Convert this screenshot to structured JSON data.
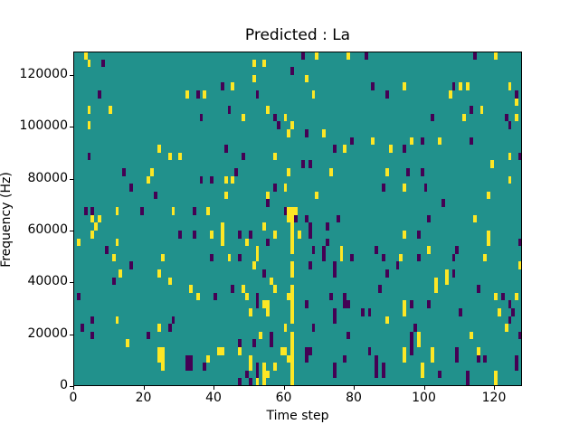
{
  "figure": {
    "title": "Predicted : La",
    "xlabel": "Time step",
    "ylabel": "Frequency (Hz)"
  },
  "chart_data": {
    "type": "heatmap",
    "title": "Predicted : La",
    "xlabel": "Time step",
    "ylabel": "Frequency (Hz)",
    "xlim": [
      0,
      128
    ],
    "ylim": [
      0,
      129000
    ],
    "grid": {
      "n_cols": 128,
      "n_rows": 43,
      "row0_at_top": true
    },
    "xticks": [
      0,
      20,
      40,
      60,
      80,
      100,
      120
    ],
    "xtick_labels": [
      "0",
      "20",
      "40",
      "60",
      "80",
      "100",
      "120"
    ],
    "yticks": [
      0,
      20000,
      40000,
      60000,
      80000,
      100000,
      120000
    ],
    "ytick_labels": [
      "0",
      "20000",
      "40000",
      "60000",
      "80000",
      "100000",
      "120000"
    ],
    "legend": null,
    "colors": {
      "background_mid": "#21918c",
      "max_yellow": "#fde725",
      "min_purple": "#440154",
      "spine": "#000000"
    },
    "value_legend": "points are [col, row_from_top, v] with v: 1 = max (yellow), 0 = min (purple); all other cells = mid (teal)",
    "points": [
      [
        3,
        0,
        1
      ],
      [
        4,
        1,
        1
      ],
      [
        8,
        1,
        0
      ],
      [
        51,
        1,
        1
      ],
      [
        54,
        1,
        1
      ],
      [
        62,
        2,
        0
      ],
      [
        51,
        3,
        1
      ],
      [
        42,
        4,
        0
      ],
      [
        45,
        4,
        1
      ],
      [
        7,
        5,
        0
      ],
      [
        32,
        5,
        1
      ],
      [
        35,
        5,
        0
      ],
      [
        37,
        5,
        1
      ],
      [
        52,
        5,
        0
      ],
      [
        4,
        7,
        1
      ],
      [
        10,
        7,
        1
      ],
      [
        44,
        7,
        0
      ],
      [
        55,
        7,
        1
      ],
      [
        36,
        8,
        0
      ],
      [
        48,
        8,
        1
      ],
      [
        60,
        8,
        1
      ],
      [
        57,
        8,
        0
      ],
      [
        58,
        9,
        0
      ],
      [
        4,
        9,
        1
      ],
      [
        62,
        9,
        1
      ],
      [
        61,
        10,
        1
      ],
      [
        24,
        12,
        1
      ],
      [
        43,
        12,
        0
      ],
      [
        4,
        13,
        0
      ],
      [
        27,
        13,
        1
      ],
      [
        30,
        13,
        1
      ],
      [
        48,
        13,
        0
      ],
      [
        57,
        13,
        1
      ],
      [
        14,
        15,
        0
      ],
      [
        22,
        15,
        1
      ],
      [
        46,
        15,
        0
      ],
      [
        61,
        15,
        1
      ],
      [
        21,
        16,
        1
      ],
      [
        36,
        16,
        0
      ],
      [
        39,
        16,
        0
      ],
      [
        43,
        16,
        1
      ],
      [
        45,
        16,
        1
      ],
      [
        16,
        17,
        0
      ],
      [
        60,
        17,
        1
      ],
      [
        57,
        17,
        0
      ],
      [
        43,
        18,
        1
      ],
      [
        23,
        18,
        0
      ],
      [
        55,
        18,
        1
      ],
      [
        55,
        19,
        0
      ],
      [
        3,
        20,
        0
      ],
      [
        5,
        20,
        0
      ],
      [
        12,
        20,
        1
      ],
      [
        28,
        20,
        1
      ],
      [
        34,
        20,
        0
      ],
      [
        38,
        20,
        1
      ],
      [
        19,
        20,
        0
      ],
      [
        5,
        21,
        1
      ],
      [
        7,
        21,
        1
      ],
      [
        63,
        21,
        0
      ],
      [
        65,
        0,
        0
      ],
      [
        69,
        0,
        1
      ],
      [
        78,
        0,
        1
      ],
      [
        83,
        0,
        0
      ],
      [
        114,
        0,
        0
      ],
      [
        120,
        0,
        1
      ],
      [
        66,
        3,
        1
      ],
      [
        85,
        4,
        0
      ],
      [
        94,
        4,
        1
      ],
      [
        108,
        4,
        0
      ],
      [
        110,
        4,
        1
      ],
      [
        112,
        4,
        1
      ],
      [
        124,
        4,
        1
      ],
      [
        126,
        5,
        0
      ],
      [
        68,
        5,
        1
      ],
      [
        89,
        5,
        0
      ],
      [
        107,
        5,
        1
      ],
      [
        113,
        7,
        0
      ],
      [
        116,
        7,
        1
      ],
      [
        126,
        6,
        1
      ],
      [
        102,
        8,
        0
      ],
      [
        111,
        8,
        1
      ],
      [
        123,
        8,
        0
      ],
      [
        126,
        8,
        1
      ],
      [
        66,
        10,
        0
      ],
      [
        71,
        10,
        1
      ],
      [
        124,
        9,
        0
      ],
      [
        79,
        11,
        0
      ],
      [
        85,
        11,
        1
      ],
      [
        96,
        11,
        1
      ],
      [
        99,
        11,
        0
      ],
      [
        104,
        11,
        1
      ],
      [
        113,
        11,
        0
      ],
      [
        74,
        12,
        0
      ],
      [
        77,
        12,
        1
      ],
      [
        90,
        12,
        1
      ],
      [
        94,
        12,
        0
      ],
      [
        124,
        13,
        1
      ],
      [
        127,
        13,
        0
      ],
      [
        65,
        14,
        0
      ],
      [
        67,
        14,
        0
      ],
      [
        73,
        15,
        1
      ],
      [
        89,
        15,
        1
      ],
      [
        95,
        15,
        0
      ],
      [
        99,
        15,
        0
      ],
      [
        119,
        14,
        1
      ],
      [
        124,
        16,
        1
      ],
      [
        88,
        17,
        0
      ],
      [
        94,
        17,
        1
      ],
      [
        100,
        17,
        0
      ],
      [
        69,
        18,
        1
      ],
      [
        105,
        19,
        0
      ],
      [
        118,
        18,
        1
      ],
      [
        66,
        21,
        0
      ],
      [
        75,
        21,
        0
      ],
      [
        114,
        21,
        1
      ],
      [
        6,
        22,
        1
      ],
      [
        60,
        20,
        0
      ],
      [
        61,
        20,
        1
      ],
      [
        62,
        20,
        1
      ],
      [
        63,
        20,
        1
      ],
      [
        61,
        21,
        1
      ],
      [
        62,
        21,
        1
      ],
      [
        1,
        24,
        1
      ],
      [
        5,
        23,
        1
      ],
      [
        9,
        25,
        0
      ],
      [
        12,
        24,
        1
      ],
      [
        30,
        23,
        0
      ],
      [
        34,
        23,
        0
      ],
      [
        39,
        23,
        1
      ],
      [
        42,
        22,
        1
      ],
      [
        42,
        23,
        1
      ],
      [
        42,
        24,
        1
      ],
      [
        47,
        23,
        0
      ],
      [
        49,
        24,
        1
      ],
      [
        50,
        23,
        0
      ],
      [
        54,
        22,
        1
      ],
      [
        57,
        23,
        1
      ],
      [
        55,
        24,
        0
      ],
      [
        52,
        25,
        1
      ],
      [
        62,
        22,
        1
      ],
      [
        62,
        23,
        1
      ],
      [
        62,
        24,
        1
      ],
      [
        62,
        25,
        1
      ],
      [
        11,
        26,
        1
      ],
      [
        47,
        26,
        0
      ],
      [
        52,
        26,
        1
      ],
      [
        25,
        26,
        1
      ],
      [
        16,
        27,
        0
      ],
      [
        24,
        28,
        1
      ],
      [
        44,
        26,
        1
      ],
      [
        39,
        26,
        0
      ],
      [
        51,
        27,
        1
      ],
      [
        62,
        27,
        1
      ],
      [
        11,
        29,
        0
      ],
      [
        13,
        28,
        1
      ],
      [
        27,
        29,
        1
      ],
      [
        54,
        28,
        0
      ],
      [
        56,
        29,
        1
      ],
      [
        62,
        28,
        1
      ],
      [
        45,
        30,
        0
      ],
      [
        33,
        30,
        1
      ],
      [
        48,
        30,
        1
      ],
      [
        57,
        30,
        1
      ],
      [
        52,
        31,
        0
      ],
      [
        35,
        31,
        1
      ],
      [
        40,
        31,
        0
      ],
      [
        1,
        31,
        0
      ],
      [
        49,
        31,
        1
      ],
      [
        62,
        30,
        1
      ],
      [
        62,
        31,
        1
      ],
      [
        61,
        31,
        1
      ],
      [
        55,
        32,
        1
      ],
      [
        54,
        32,
        1
      ],
      [
        55,
        33,
        1
      ],
      [
        52,
        32,
        0
      ],
      [
        50,
        33,
        1
      ],
      [
        62,
        32,
        1
      ],
      [
        62,
        33,
        1
      ],
      [
        28,
        34,
        0
      ],
      [
        12,
        34,
        1
      ],
      [
        5,
        34,
        0
      ],
      [
        62,
        34,
        1
      ],
      [
        2,
        35,
        0
      ],
      [
        27,
        35,
        0
      ],
      [
        24,
        35,
        1
      ],
      [
        60,
        35,
        1
      ],
      [
        5,
        36,
        0
      ],
      [
        15,
        37,
        1
      ],
      [
        21,
        36,
        0
      ],
      [
        62,
        36,
        1
      ],
      [
        62,
        37,
        1
      ],
      [
        24,
        38,
        1
      ],
      [
        25,
        38,
        1
      ],
      [
        24,
        39,
        1
      ],
      [
        25,
        39,
        1
      ],
      [
        25,
        40,
        1
      ],
      [
        32,
        39,
        0
      ],
      [
        33,
        39,
        0
      ],
      [
        32,
        40,
        0
      ],
      [
        33,
        40,
        0
      ],
      [
        38,
        39,
        1
      ],
      [
        37,
        40,
        0
      ],
      [
        41,
        38,
        1
      ],
      [
        42,
        38,
        1
      ],
      [
        47,
        37,
        0
      ],
      [
        47,
        38,
        1
      ],
      [
        51,
        37,
        0
      ],
      [
        53,
        36,
        1
      ],
      [
        56,
        36,
        0
      ],
      [
        56,
        37,
        0
      ],
      [
        50,
        39,
        1
      ],
      [
        50,
        40,
        1
      ],
      [
        52,
        40,
        0
      ],
      [
        52,
        41,
        0
      ],
      [
        54,
        40,
        1
      ],
      [
        54,
        41,
        1
      ],
      [
        54,
        42,
        1
      ],
      [
        57,
        40,
        1
      ],
      [
        49,
        41,
        0
      ],
      [
        50,
        42,
        0
      ],
      [
        55,
        41,
        1
      ],
      [
        59,
        38,
        1
      ],
      [
        60,
        38,
        1
      ],
      [
        62,
        38,
        1
      ],
      [
        62,
        39,
        1
      ],
      [
        61,
        39,
        1
      ],
      [
        62,
        40,
        1
      ],
      [
        62,
        41,
        1
      ],
      [
        62,
        42,
        1
      ],
      [
        47,
        42,
        0
      ],
      [
        52,
        42,
        1
      ],
      [
        67,
        22,
        0
      ],
      [
        72,
        22,
        0
      ],
      [
        75,
        21,
        0
      ],
      [
        101,
        21,
        0
      ],
      [
        64,
        23,
        1
      ],
      [
        67,
        23,
        0
      ],
      [
        72,
        24,
        0
      ],
      [
        94,
        23,
        1
      ],
      [
        98,
        23,
        0
      ],
      [
        118,
        23,
        1
      ],
      [
        118,
        24,
        1
      ],
      [
        68,
        25,
        0
      ],
      [
        71,
        25,
        0
      ],
      [
        71,
        26,
        0
      ],
      [
        76,
        25,
        1
      ],
      [
        76,
        26,
        1
      ],
      [
        79,
        26,
        0
      ],
      [
        86,
        25,
        0
      ],
      [
        88,
        26,
        0
      ],
      [
        93,
        26,
        1
      ],
      [
        98,
        26,
        0
      ],
      [
        101,
        25,
        1
      ],
      [
        109,
        25,
        0
      ],
      [
        108,
        26,
        0
      ],
      [
        117,
        26,
        1
      ],
      [
        67,
        27,
        0
      ],
      [
        74,
        27,
        0
      ],
      [
        74,
        28,
        0
      ],
      [
        92,
        27,
        0
      ],
      [
        89,
        28,
        0
      ],
      [
        106,
        28,
        1
      ],
      [
        106,
        29,
        1
      ],
      [
        108,
        28,
        0
      ],
      [
        87,
        30,
        0
      ],
      [
        103,
        29,
        1
      ],
      [
        103,
        30,
        1
      ],
      [
        115,
        30,
        0
      ],
      [
        127,
        24,
        0
      ],
      [
        127,
        27,
        1
      ],
      [
        73,
        31,
        0
      ],
      [
        77,
        31,
        0
      ],
      [
        78,
        32,
        0
      ],
      [
        66,
        32,
        0
      ],
      [
        74,
        33,
        0
      ],
      [
        74,
        34,
        0
      ],
      [
        77,
        32,
        0
      ],
      [
        82,
        33,
        0
      ],
      [
        84,
        33,
        0
      ],
      [
        89,
        34,
        1
      ],
      [
        94,
        32,
        1
      ],
      [
        94,
        33,
        1
      ],
      [
        96,
        32,
        0
      ],
      [
        101,
        32,
        0
      ],
      [
        110,
        33,
        0
      ],
      [
        121,
        33,
        1
      ],
      [
        122,
        31,
        0
      ],
      [
        126,
        31,
        1
      ],
      [
        120,
        31,
        1
      ],
      [
        124,
        32,
        0
      ],
      [
        125,
        33,
        0
      ],
      [
        124,
        34,
        0
      ],
      [
        68,
        35,
        0
      ],
      [
        97,
        35,
        0
      ],
      [
        123,
        35,
        1
      ],
      [
        78,
        36,
        0
      ],
      [
        96,
        36,
        0
      ],
      [
        96,
        37,
        0
      ],
      [
        98,
        36,
        1
      ],
      [
        98,
        37,
        1
      ],
      [
        127,
        36,
        0
      ],
      [
        66,
        38,
        0
      ],
      [
        67,
        38,
        0
      ],
      [
        66,
        39,
        0
      ],
      [
        84,
        38,
        0
      ],
      [
        94,
        38,
        1
      ],
      [
        94,
        39,
        1
      ],
      [
        96,
        38,
        0
      ],
      [
        102,
        38,
        1
      ],
      [
        102,
        39,
        1
      ],
      [
        109,
        38,
        0
      ],
      [
        109,
        39,
        0
      ],
      [
        113,
        36,
        1
      ],
      [
        115,
        38,
        1
      ],
      [
        115,
        39,
        0
      ],
      [
        117,
        39,
        0
      ],
      [
        86,
        39,
        0
      ],
      [
        86,
        40,
        0
      ],
      [
        86,
        41,
        0
      ],
      [
        88,
        40,
        0
      ],
      [
        88,
        41,
        0
      ],
      [
        99,
        40,
        1
      ],
      [
        99,
        41,
        1
      ],
      [
        104,
        41,
        0
      ],
      [
        74,
        40,
        0
      ],
      [
        74,
        41,
        0
      ],
      [
        77,
        39,
        0
      ],
      [
        112,
        41,
        0
      ],
      [
        112,
        42,
        0
      ],
      [
        120,
        41,
        1
      ],
      [
        120,
        42,
        1
      ],
      [
        126,
        39,
        0
      ],
      [
        126,
        40,
        0
      ]
    ]
  }
}
